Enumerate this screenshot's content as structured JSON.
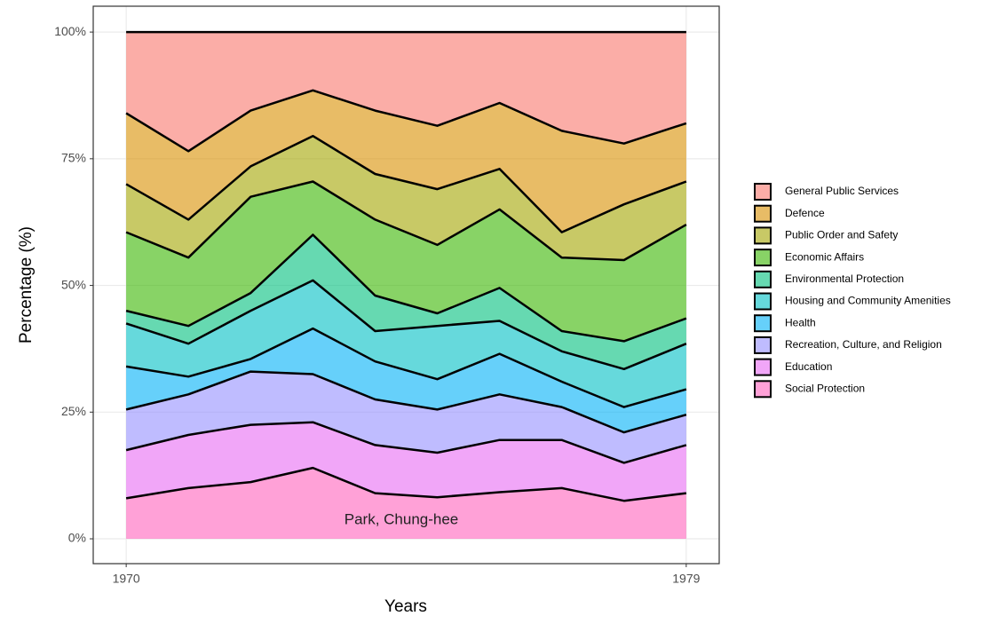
{
  "chart_data": {
    "type": "area",
    "stacked": true,
    "x_label": "Years",
    "y_label": "Percentage (%)",
    "annotation": "Park, Chung-hee",
    "x": [
      1970,
      1971,
      1972,
      1973,
      1974,
      1975,
      1976,
      1977,
      1978,
      1979
    ],
    "xlim": [
      1969.47,
      1979.53
    ],
    "xticks": [
      1970,
      1979
    ],
    "ylim": [
      -4.9,
      105.1
    ],
    "yticks": [
      {
        "value": 0,
        "label": "0%"
      },
      {
        "value": 25,
        "label": "25%"
      },
      {
        "value": 50,
        "label": "50%"
      },
      {
        "value": 75,
        "label": "75%"
      },
      {
        "value": 100,
        "label": "100%"
      }
    ],
    "grid": true,
    "legend": "right",
    "series": [
      {
        "name": "General Public Services",
        "color": "#F8766D",
        "values": [
          16,
          23.5,
          15.5,
          11.5,
          15.5,
          18.5,
          14,
          19.5,
          22,
          18
        ]
      },
      {
        "name": "Defence",
        "color": "#D89000",
        "values": [
          14,
          13.5,
          11,
          9,
          12.5,
          12.5,
          13,
          20,
          12,
          11.5
        ]
      },
      {
        "name": "Public Order and Safety",
        "color": "#A3A500",
        "values": [
          9.5,
          7.5,
          6,
          9,
          9,
          11,
          8,
          5,
          11,
          8.5
        ]
      },
      {
        "name": "Economic Affairs",
        "color": "#39B600",
        "values": [
          15.5,
          13.5,
          19,
          10.5,
          15,
          13.5,
          15.5,
          14.5,
          16,
          18.5
        ]
      },
      {
        "name": "Environmental Protection",
        "color": "#00BF7D",
        "values": [
          2.5,
          3.5,
          3.5,
          9,
          7,
          2.5,
          6.5,
          4,
          5.5,
          5
        ]
      },
      {
        "name": "Housing and Community Amenities",
        "color": "#00BFC4",
        "values": [
          8.5,
          6.5,
          9.5,
          9.5,
          6,
          10.5,
          6.5,
          6,
          7.5,
          9
        ]
      },
      {
        "name": "Health",
        "color": "#00B0F6",
        "values": [
          8.5,
          3.5,
          2.5,
          9,
          7.5,
          6,
          8,
          5,
          5,
          5
        ]
      },
      {
        "name": "Recreation, Culture, and Religion",
        "color": "#9590FF",
        "values": [
          8,
          8,
          10.5,
          9.5,
          9,
          8.5,
          9,
          6.5,
          6,
          6
        ]
      },
      {
        "name": "Education",
        "color": "#E76BF3",
        "values": [
          9.5,
          10.5,
          11.3,
          9,
          9.5,
          8.8,
          10.3,
          9.5,
          7.5,
          9.5
        ]
      },
      {
        "name": "Social Protection",
        "color": "#FF62BC",
        "values": [
          8,
          10,
          11.2,
          14,
          9,
          8.2,
          9.2,
          10,
          7.5,
          9
        ]
      }
    ]
  }
}
